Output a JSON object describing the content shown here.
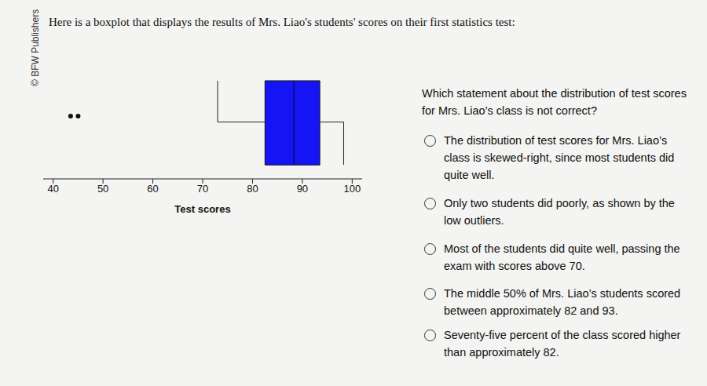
{
  "header": {
    "text": "Here is a boxplot that displays the results of Mrs. Liao's students' scores on their first statistics test:",
    "copyright": "© BFW Publishers"
  },
  "chart_data": {
    "type": "boxplot",
    "x_label": "Test scores",
    "xlim": [
      38,
      102
    ],
    "xticks": [
      40,
      50,
      60,
      70,
      80,
      90,
      100
    ],
    "min": 73,
    "q1": 82.5,
    "median": 88.3,
    "q3": 93.5,
    "max": 98.3,
    "outliers": [
      43.5,
      45
    ],
    "color": "#1414f5"
  },
  "question": {
    "text": "Which statement about the distribution of test scores for Mrs. Liao’s class is not correct?",
    "options": [
      "The distribution of test scores for Mrs. Liao’s class is skewed-right, since most students did quite well.",
      "Only two students did poorly, as shown by the low outliers.",
      "Most of the students did quite well, passing the exam with scores above 70.",
      "The middle 50% of Mrs. Liao’s students scored between approximately 82 and 93.",
      "Seventy-five percent of the class scored higher than approximately 82."
    ]
  }
}
